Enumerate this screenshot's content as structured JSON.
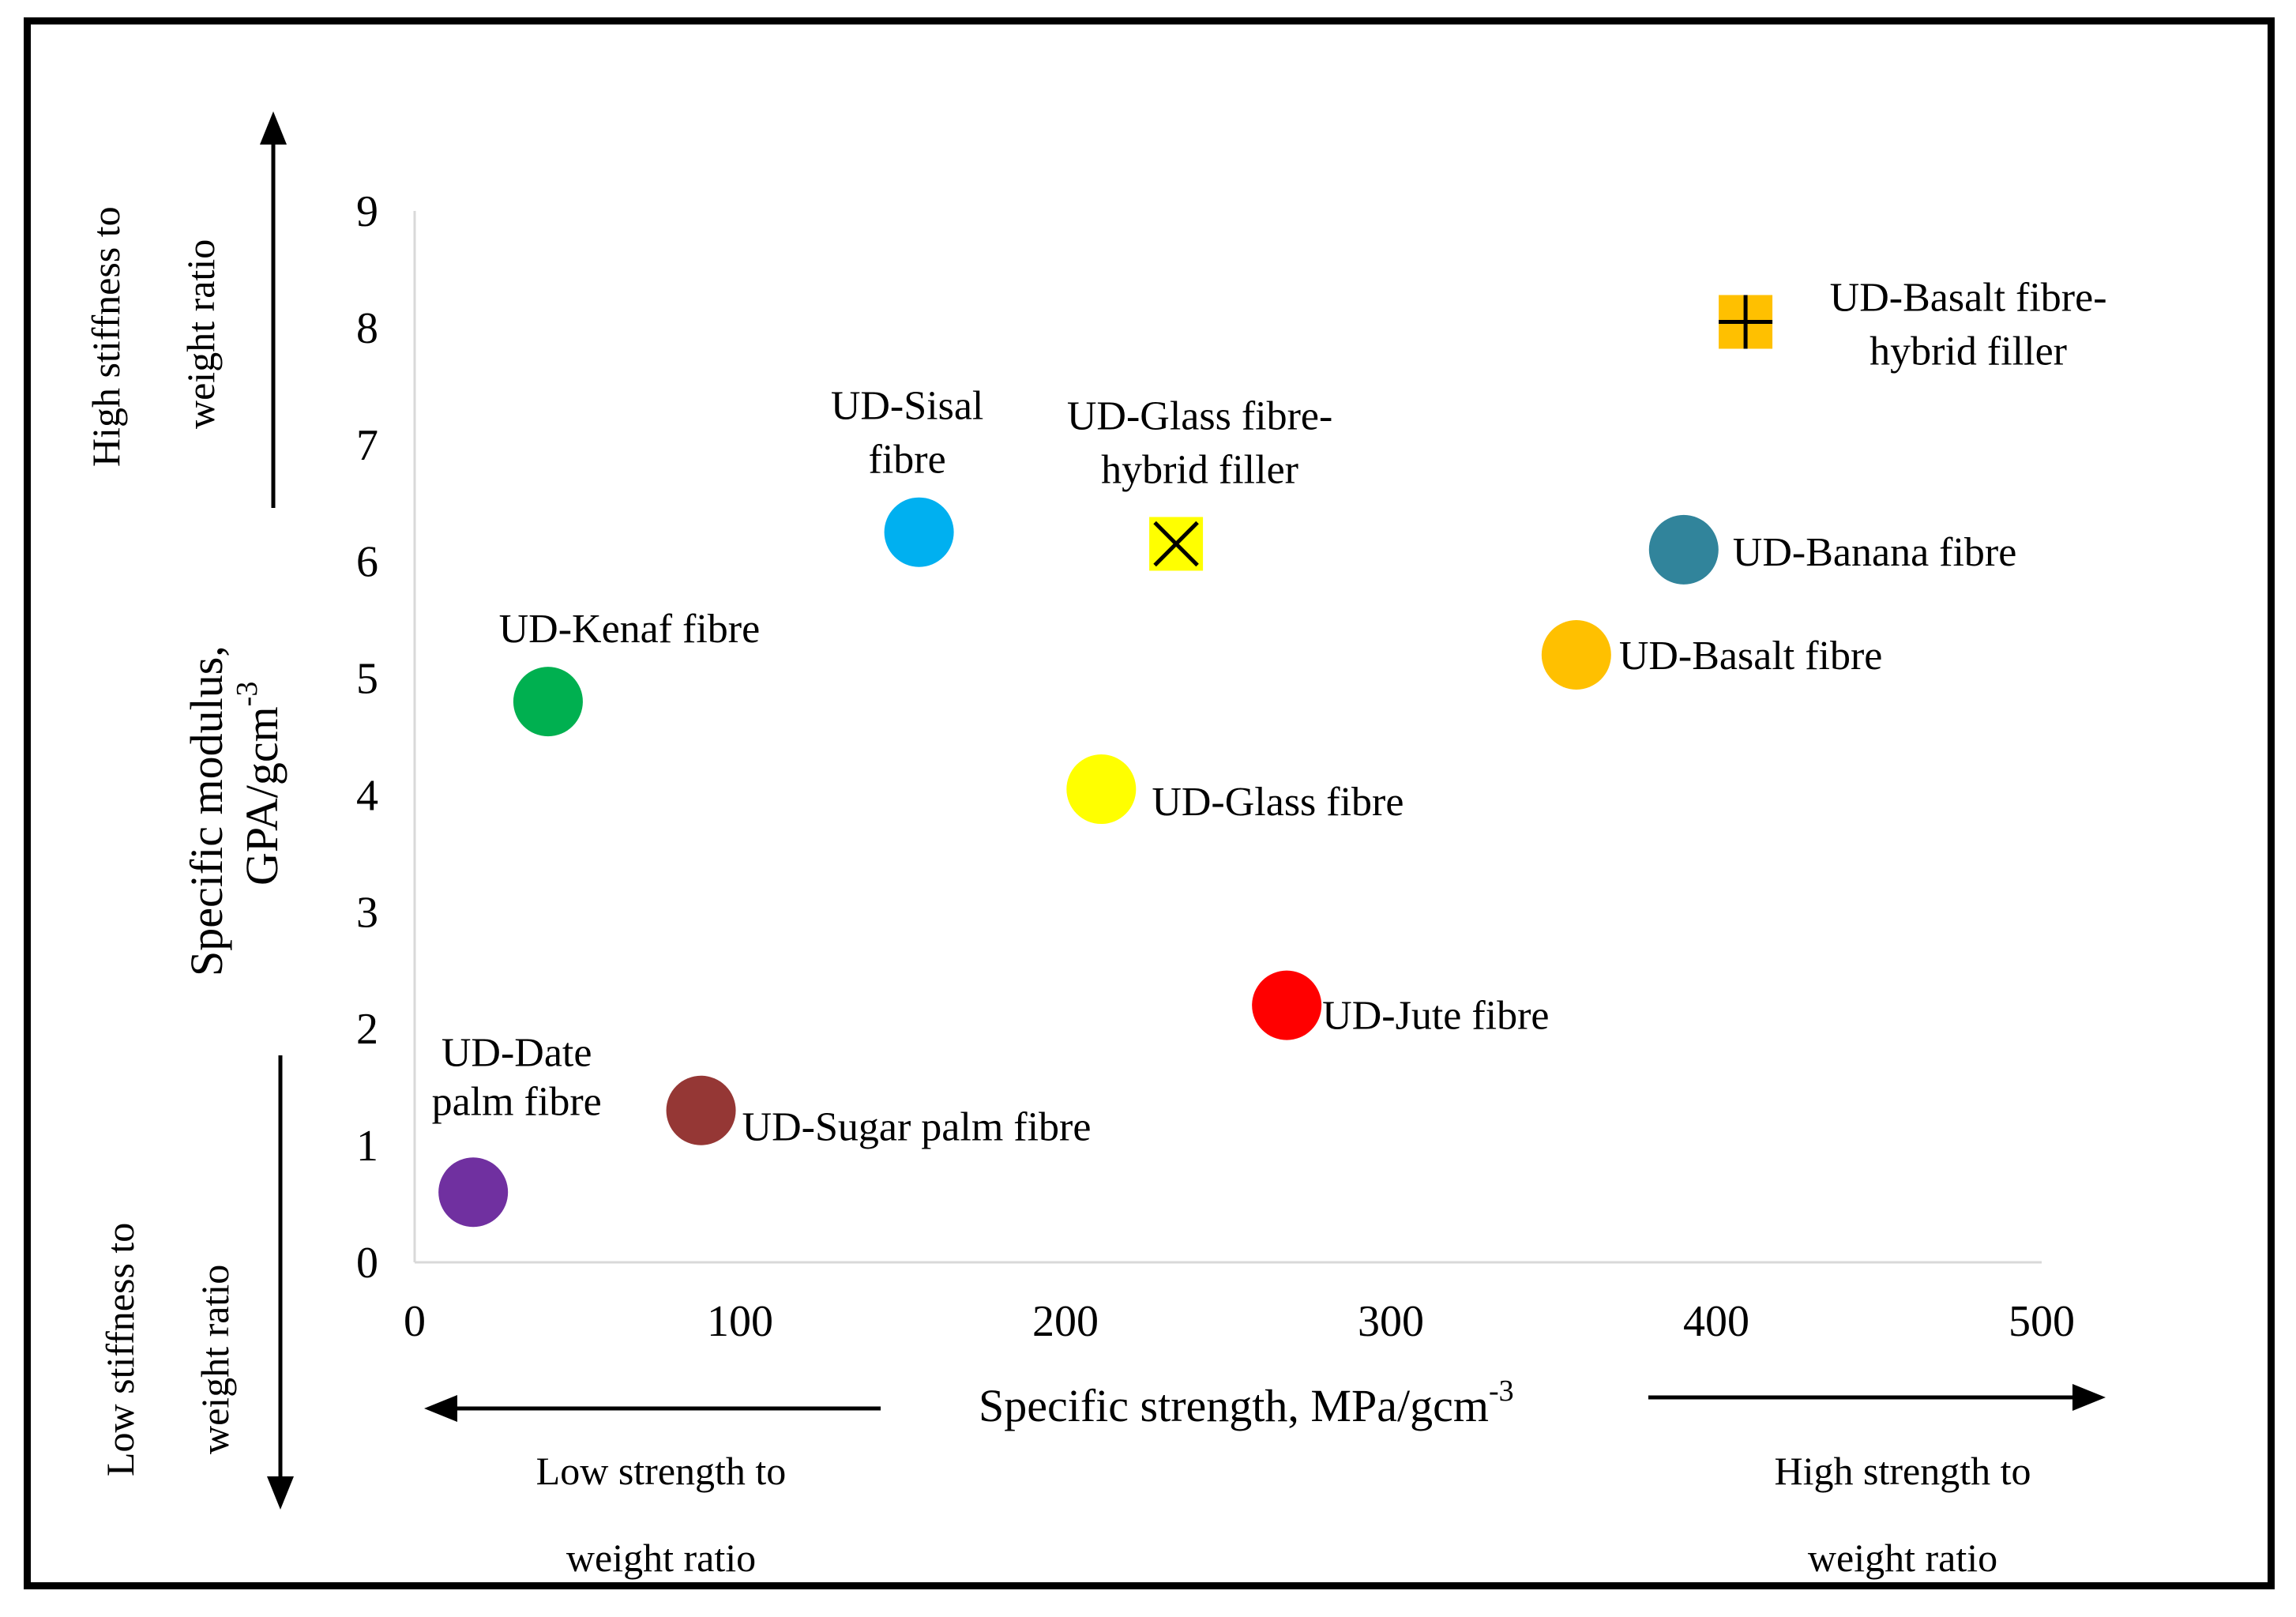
{
  "chart_data": {
    "type": "scatter",
    "xlabel": "Specific strength, MPa/gcm",
    "xlabel_sup": "-3",
    "ylabel_line1": "Specific modulus,",
    "ylabel_line2": "GPA/gcm",
    "ylabel_sup": "-3",
    "xlim": [
      0,
      500
    ],
    "ylim": [
      0,
      9
    ],
    "xticks": [
      "0",
      "100",
      "200",
      "300",
      "400",
      "500"
    ],
    "yticks": [
      "0",
      "1",
      "2",
      "3",
      "4",
      "5",
      "6",
      "7",
      "8",
      "9"
    ],
    "grid": false,
    "annotations": {
      "high_stiffness_line1": "High stiffness to",
      "high_stiffness_line2": "weight  ratio",
      "low_stiffness_line1": "Low stiffness to",
      "low_stiffness_line2": "weight  ratio",
      "low_strength_line1": "Low strength to",
      "low_strength_line2": "weight ratio",
      "high_strength_line1": "High strength to",
      "high_strength_line2": "weight ratio"
    },
    "points": [
      {
        "label": [
          "UD-Date",
          "palm fibre"
        ],
        "x": 18,
        "y": 0.6,
        "color": "#7030a0",
        "marker": "circle"
      },
      {
        "label": [
          "UD-Sugar palm fibre"
        ],
        "x": 88,
        "y": 1.3,
        "color": "#953735",
        "marker": "circle"
      },
      {
        "label": [
          "UD-Kenaf fibre"
        ],
        "x": 41,
        "y": 4.8,
        "color": "#00b050",
        "marker": "circle"
      },
      {
        "label": [
          "UD-Sisal",
          "fibre"
        ],
        "x": 155,
        "y": 6.25,
        "color": "#00b0f0",
        "marker": "circle"
      },
      {
        "label": [
          "UD-Glass fibre"
        ],
        "x": 211,
        "y": 4.05,
        "color": "#ffff00",
        "marker": "circle"
      },
      {
        "label": [
          "UD-Glass fibre-",
          "hybrid filler"
        ],
        "x": 234,
        "y": 6.15,
        "color": "#ffff00",
        "marker": "square-x"
      },
      {
        "label": [
          "UD-Jute fibre"
        ],
        "x": 268,
        "y": 2.2,
        "color": "#ff0000",
        "marker": "circle"
      },
      {
        "label": [
          "UD-Basalt fibre"
        ],
        "x": 357,
        "y": 5.2,
        "color": "#ffc000",
        "marker": "circle"
      },
      {
        "label": [
          "UD-Banana fibre"
        ],
        "x": 390,
        "y": 6.1,
        "color": "#31849b",
        "marker": "circle"
      },
      {
        "label": [
          "UD-Basalt fibre-",
          "hybrid filler"
        ],
        "x": 409,
        "y": 8.05,
        "color": "#ffc000",
        "marker": "square-plus"
      }
    ]
  }
}
